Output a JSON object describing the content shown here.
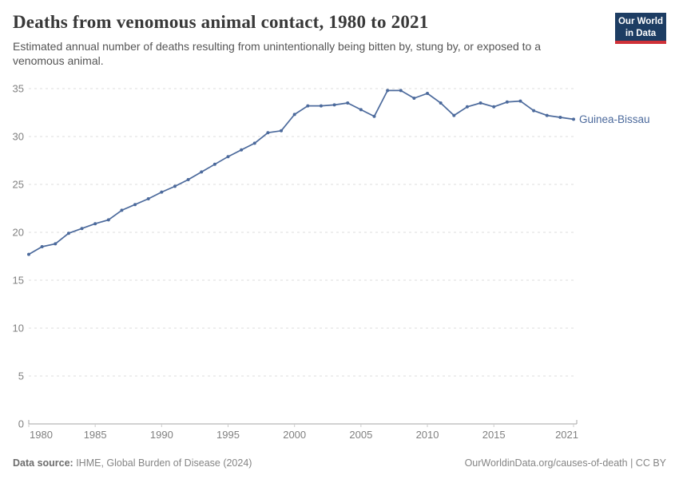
{
  "header": {
    "title": "Deaths from venomous animal contact, 1980 to 2021",
    "subtitle": "Estimated annual number of deaths resulting from unintentionally being bitten by, stung by, or exposed to a venomous animal.",
    "logo": {
      "line1": "Our World",
      "line2": "in Data"
    }
  },
  "chart_data": {
    "type": "line",
    "title": "Deaths from venomous animal contact, 1980 to 2021",
    "xlabel": "",
    "ylabel": "",
    "xlim": [
      1980,
      2021
    ],
    "ylim": [
      0,
      35
    ],
    "x_ticks": [
      1980,
      1985,
      1990,
      1995,
      2000,
      2005,
      2010,
      2015,
      2021
    ],
    "y_ticks": [
      0,
      5,
      10,
      15,
      20,
      25,
      30,
      35
    ],
    "grid": "horizontal-dashed",
    "legend_position": "end-of-line-label",
    "x": [
      1980,
      1981,
      1982,
      1983,
      1984,
      1985,
      1986,
      1987,
      1988,
      1989,
      1990,
      1991,
      1992,
      1993,
      1994,
      1995,
      1996,
      1997,
      1998,
      1999,
      2000,
      2001,
      2002,
      2003,
      2004,
      2005,
      2006,
      2007,
      2008,
      2009,
      2010,
      2011,
      2012,
      2013,
      2014,
      2015,
      2016,
      2017,
      2018,
      2019,
      2020,
      2021
    ],
    "series": [
      {
        "name": "Guinea-Bissau",
        "color": "#4c6a9c",
        "values": [
          17.7,
          18.5,
          18.8,
          19.9,
          20.4,
          20.9,
          21.3,
          22.3,
          22.9,
          23.5,
          24.2,
          24.8,
          25.5,
          26.3,
          27.1,
          27.9,
          28.6,
          29.3,
          30.4,
          30.6,
          32.3,
          33.2,
          33.2,
          33.3,
          33.5,
          32.8,
          32.1,
          34.8,
          34.8,
          34.0,
          34.5,
          33.5,
          32.2,
          33.1,
          33.5,
          33.1,
          33.6,
          33.7,
          32.7,
          32.2,
          32.0,
          31.8
        ]
      }
    ],
    "axis_colors": {
      "grid": "#dcdcdc",
      "axis": "#a5a5a5",
      "tick_label": "#808080"
    }
  },
  "footer": {
    "source_label": "Data source:",
    "source_text": " IHME, Global Burden of Disease (2024)",
    "rights": "OurWorldinData.org/causes-of-death | CC BY"
  }
}
